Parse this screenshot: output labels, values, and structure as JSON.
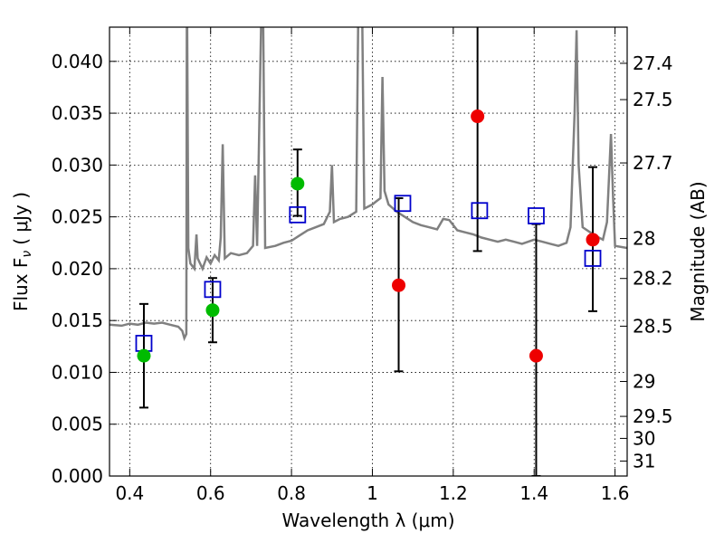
{
  "chart_data": {
    "type": "scatter",
    "xlabel": "Wavelength  λ (μm)",
    "ylabel": "Flux  F",
    "ylabel_sub": "ν",
    "ylabel_unit": "( μJy )",
    "y2label": "Magnitude (AB)",
    "xlim": [
      0.35,
      1.63
    ],
    "ylim": [
      0.0,
      0.0433
    ],
    "grid": true,
    "x_ticks": [
      {
        "value": 0.4,
        "label": "0.4"
      },
      {
        "value": 0.6,
        "label": "0.6"
      },
      {
        "value": 0.8,
        "label": "0.8"
      },
      {
        "value": 1.0,
        "label": "1"
      },
      {
        "value": 1.2,
        "label": "1.2"
      },
      {
        "value": 1.4,
        "label": "1.4"
      },
      {
        "value": 1.6,
        "label": "1.6"
      }
    ],
    "y_ticks": [
      {
        "value": 0.0,
        "label": "0.000"
      },
      {
        "value": 0.005,
        "label": "0.005"
      },
      {
        "value": 0.01,
        "label": "0.010"
      },
      {
        "value": 0.015,
        "label": "0.015"
      },
      {
        "value": 0.02,
        "label": "0.020"
      },
      {
        "value": 0.025,
        "label": "0.025"
      },
      {
        "value": 0.03,
        "label": "0.030"
      },
      {
        "value": 0.035,
        "label": "0.035"
      },
      {
        "value": 0.04,
        "label": "0.040"
      }
    ],
    "mag_ticks": [
      {
        "value": 27.4,
        "label": "27.4"
      },
      {
        "value": 27.5,
        "label": "27.5"
      },
      {
        "value": 27.7,
        "label": "27.7"
      },
      {
        "value": 28.0,
        "label": "28"
      },
      {
        "value": 28.2,
        "label": "28.2"
      },
      {
        "value": 28.5,
        "label": "28.5"
      },
      {
        "value": 29.0,
        "label": "29"
      },
      {
        "value": 29.5,
        "label": "29.5"
      },
      {
        "value": 30.0,
        "label": "30"
      },
      {
        "value": 31.0,
        "label": "31"
      }
    ],
    "colors": {
      "spectrum": "#808080",
      "model": "#0000cc",
      "detection": "#00bb00",
      "nondetection": "#ee0000",
      "errorbar": "#000000"
    },
    "spectrum": [
      [
        0.35,
        0.0146
      ],
      [
        0.38,
        0.0145
      ],
      [
        0.4,
        0.0147
      ],
      [
        0.42,
        0.0146
      ],
      [
        0.44,
        0.0148
      ],
      [
        0.46,
        0.0147
      ],
      [
        0.48,
        0.0148
      ],
      [
        0.5,
        0.0146
      ],
      [
        0.52,
        0.0144
      ],
      [
        0.53,
        0.014
      ],
      [
        0.535,
        0.0133
      ],
      [
        0.54,
        0.0137
      ],
      [
        0.541,
        0.043
      ],
      [
        0.542,
        0.044
      ],
      [
        0.545,
        0.022
      ],
      [
        0.55,
        0.0205
      ],
      [
        0.56,
        0.02
      ],
      [
        0.565,
        0.0233
      ],
      [
        0.568,
        0.021
      ],
      [
        0.58,
        0.02
      ],
      [
        0.59,
        0.0211
      ],
      [
        0.6,
        0.0205
      ],
      [
        0.61,
        0.0213
      ],
      [
        0.62,
        0.0208
      ],
      [
        0.625,
        0.023
      ],
      [
        0.63,
        0.032
      ],
      [
        0.635,
        0.021
      ],
      [
        0.65,
        0.0215
      ],
      [
        0.67,
        0.0213
      ],
      [
        0.69,
        0.0215
      ],
      [
        0.705,
        0.0222
      ],
      [
        0.71,
        0.029
      ],
      [
        0.715,
        0.0222
      ],
      [
        0.725,
        0.044
      ],
      [
        0.73,
        0.044
      ],
      [
        0.735,
        0.022
      ],
      [
        0.76,
        0.0222
      ],
      [
        0.78,
        0.0225
      ],
      [
        0.8,
        0.0227
      ],
      [
        0.82,
        0.0232
      ],
      [
        0.84,
        0.0237
      ],
      [
        0.86,
        0.024
      ],
      [
        0.88,
        0.0243
      ],
      [
        0.895,
        0.0255
      ],
      [
        0.9,
        0.03
      ],
      [
        0.905,
        0.0245
      ],
      [
        0.92,
        0.0248
      ],
      [
        0.94,
        0.025
      ],
      [
        0.96,
        0.0255
      ],
      [
        0.965,
        0.044
      ],
      [
        0.975,
        0.044
      ],
      [
        0.98,
        0.0258
      ],
      [
        1.0,
        0.0262
      ],
      [
        1.01,
        0.0265
      ],
      [
        1.02,
        0.0268
      ],
      [
        1.025,
        0.0385
      ],
      [
        1.03,
        0.0275
      ],
      [
        1.04,
        0.0262
      ],
      [
        1.06,
        0.0255
      ],
      [
        1.08,
        0.025
      ],
      [
        1.1,
        0.0245
      ],
      [
        1.12,
        0.0242
      ],
      [
        1.14,
        0.024
      ],
      [
        1.16,
        0.0238
      ],
      [
        1.175,
        0.0248
      ],
      [
        1.19,
        0.0247
      ],
      [
        1.21,
        0.0237
      ],
      [
        1.23,
        0.0235
      ],
      [
        1.25,
        0.0233
      ],
      [
        1.27,
        0.023
      ],
      [
        1.29,
        0.0228
      ],
      [
        1.31,
        0.0226
      ],
      [
        1.33,
        0.0228
      ],
      [
        1.35,
        0.0226
      ],
      [
        1.37,
        0.0224
      ],
      [
        1.4,
        0.0228
      ],
      [
        1.42,
        0.0226
      ],
      [
        1.44,
        0.0224
      ],
      [
        1.46,
        0.0222
      ],
      [
        1.48,
        0.0225
      ],
      [
        1.49,
        0.024
      ],
      [
        1.5,
        0.035
      ],
      [
        1.505,
        0.043
      ],
      [
        1.51,
        0.03
      ],
      [
        1.52,
        0.024
      ],
      [
        1.55,
        0.0232
      ],
      [
        1.57,
        0.0228
      ],
      [
        1.58,
        0.0245
      ],
      [
        1.59,
        0.033
      ],
      [
        1.595,
        0.027
      ],
      [
        1.6,
        0.0222
      ],
      [
        1.63,
        0.022
      ]
    ],
    "model_points": [
      {
        "x": 0.435,
        "y": 0.0128
      },
      {
        "x": 0.605,
        "y": 0.018
      },
      {
        "x": 0.815,
        "y": 0.0252
      },
      {
        "x": 1.075,
        "y": 0.0263
      },
      {
        "x": 1.265,
        "y": 0.0256
      },
      {
        "x": 1.405,
        "y": 0.0251
      },
      {
        "x": 1.545,
        "y": 0.021
      }
    ],
    "detections": [
      {
        "x": 0.435,
        "y": 0.0116,
        "ylo": 0.0066,
        "yhi": 0.0166
      },
      {
        "x": 0.605,
        "y": 0.016,
        "ylo": 0.0129,
        "yhi": 0.0191
      },
      {
        "x": 0.815,
        "y": 0.0282,
        "ylo": 0.0251,
        "yhi": 0.0315
      }
    ],
    "nondetections": [
      {
        "x": 1.065,
        "y": 0.0184,
        "ylo": 0.0101,
        "yhi": 0.0268
      },
      {
        "x": 1.26,
        "y": 0.0347,
        "ylo": 0.0217,
        "yhi": 0.044
      },
      {
        "x": 1.405,
        "y": 0.0116,
        "ylo": 0.0,
        "yhi": 0.0243
      },
      {
        "x": 1.545,
        "y": 0.0228,
        "ylo": 0.0159,
        "yhi": 0.0298
      }
    ]
  }
}
